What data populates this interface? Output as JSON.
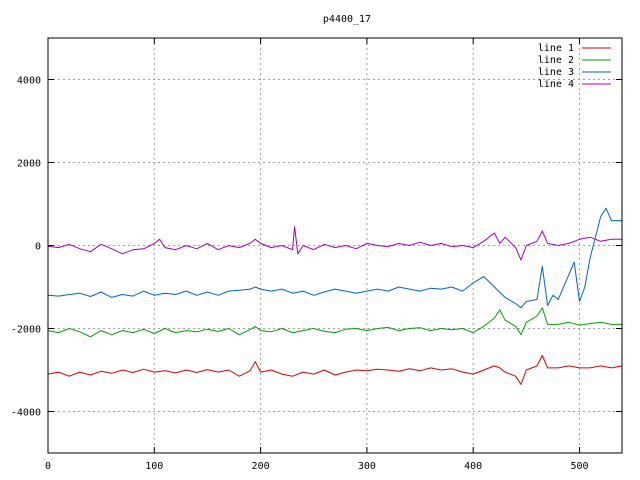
{
  "chart_data": {
    "type": "line",
    "title": "p4400_17",
    "xlabel": "",
    "ylabel": "",
    "xlim": [
      0,
      540
    ],
    "ylim": [
      -5000,
      5000
    ],
    "x_ticks": [
      0,
      100,
      200,
      300,
      400,
      500
    ],
    "y_ticks": [
      -4000,
      -2000,
      0,
      2000,
      4000
    ],
    "grid": true,
    "legend_position": "top-right",
    "series": [
      {
        "name": "line 1",
        "color": "#e00000",
        "x": [
          0,
          10,
          20,
          30,
          40,
          50,
          60,
          70,
          80,
          90,
          100,
          110,
          120,
          130,
          140,
          150,
          160,
          170,
          180,
          190,
          195,
          200,
          210,
          220,
          230,
          240,
          250,
          260,
          270,
          280,
          290,
          300,
          310,
          320,
          330,
          340,
          350,
          360,
          370,
          380,
          390,
          400,
          410,
          420,
          425,
          430,
          440,
          445,
          450,
          460,
          465,
          470,
          480,
          490,
          500,
          510,
          520,
          530,
          540
        ],
        "values": [
          -3100,
          -3050,
          -3150,
          -3050,
          -3120,
          -3030,
          -3080,
          -3000,
          -3060,
          -2980,
          -3050,
          -3020,
          -3070,
          -3000,
          -3060,
          -2990,
          -3050,
          -3000,
          -3150,
          -3020,
          -2800,
          -3050,
          -3000,
          -3100,
          -3150,
          -3050,
          -3100,
          -3000,
          -3120,
          -3050,
          -3000,
          -3020,
          -2980,
          -3000,
          -3030,
          -2970,
          -3020,
          -2950,
          -3000,
          -2970,
          -3050,
          -3100,
          -3000,
          -2900,
          -2950,
          -3050,
          -3150,
          -3350,
          -3000,
          -2900,
          -2650,
          -2950,
          -2950,
          -2900,
          -2950,
          -2950,
          -2900,
          -2950,
          -2900
        ]
      },
      {
        "name": "line 2",
        "color": "#00a000",
        "x": [
          0,
          10,
          20,
          30,
          40,
          50,
          60,
          70,
          80,
          90,
          100,
          110,
          120,
          130,
          140,
          150,
          160,
          170,
          180,
          190,
          195,
          200,
          210,
          220,
          230,
          240,
          250,
          260,
          270,
          280,
          290,
          300,
          310,
          320,
          330,
          340,
          350,
          360,
          370,
          380,
          390,
          400,
          410,
          420,
          425,
          430,
          440,
          445,
          450,
          460,
          465,
          470,
          480,
          490,
          500,
          510,
          520,
          530,
          540
        ],
        "values": [
          -2050,
          -2100,
          -2000,
          -2080,
          -2200,
          -2050,
          -2150,
          -2050,
          -2100,
          -2020,
          -2120,
          -2000,
          -2100,
          -2050,
          -2080,
          -2020,
          -2070,
          -2000,
          -2150,
          -2030,
          -1950,
          -2050,
          -2080,
          -2000,
          -2100,
          -2050,
          -2000,
          -2070,
          -2100,
          -2020,
          -2000,
          -2050,
          -2000,
          -1970,
          -2050,
          -2000,
          -1980,
          -2050,
          -2000,
          -2030,
          -2000,
          -2100,
          -1950,
          -1750,
          -1550,
          -1800,
          -1950,
          -2150,
          -1850,
          -1700,
          -1500,
          -1900,
          -1900,
          -1850,
          -1920,
          -1880,
          -1850,
          -1900,
          -1900
        ]
      },
      {
        "name": "line 3",
        "color": "#0060e0",
        "x": [
          0,
          10,
          20,
          30,
          40,
          50,
          60,
          70,
          80,
          90,
          100,
          110,
          120,
          130,
          140,
          150,
          160,
          170,
          180,
          190,
          195,
          200,
          210,
          220,
          230,
          240,
          250,
          260,
          270,
          280,
          290,
          300,
          310,
          320,
          330,
          340,
          350,
          360,
          370,
          380,
          390,
          400,
          410,
          420,
          430,
          440,
          445,
          450,
          460,
          465,
          470,
          475,
          480,
          490,
          495,
          500,
          505,
          510,
          520,
          525,
          530,
          540
        ],
        "values": [
          -1200,
          -1220,
          -1180,
          -1150,
          -1230,
          -1120,
          -1250,
          -1180,
          -1220,
          -1100,
          -1200,
          -1150,
          -1180,
          -1100,
          -1200,
          -1120,
          -1200,
          -1100,
          -1080,
          -1050,
          -1000,
          -1050,
          -1100,
          -1050,
          -1150,
          -1100,
          -1200,
          -1120,
          -1050,
          -1100,
          -1150,
          -1100,
          -1050,
          -1100,
          -1000,
          -1050,
          -1100,
          -1030,
          -1050,
          -1000,
          -1100,
          -900,
          -750,
          -1000,
          -1250,
          -1400,
          -1500,
          -1350,
          -1300,
          -500,
          -1450,
          -1200,
          -1300,
          -700,
          -400,
          -1350,
          -1000,
          -300,
          700,
          900,
          600,
          600
        ]
      },
      {
        "name": "line 4",
        "color": "#a000c0",
        "x": [
          0,
          10,
          20,
          30,
          40,
          50,
          60,
          70,
          80,
          90,
          100,
          105,
          110,
          120,
          130,
          140,
          150,
          160,
          170,
          180,
          190,
          195,
          200,
          210,
          220,
          230,
          232,
          235,
          240,
          250,
          260,
          270,
          280,
          290,
          300,
          310,
          320,
          330,
          340,
          350,
          360,
          370,
          380,
          390,
          400,
          410,
          420,
          425,
          430,
          440,
          445,
          450,
          460,
          465,
          470,
          480,
          490,
          500,
          510,
          520,
          530,
          540
        ],
        "values": [
          -20,
          -50,
          30,
          -80,
          -150,
          30,
          -80,
          -200,
          -100,
          -80,
          50,
          150,
          -50,
          -100,
          0,
          -80,
          50,
          -100,
          0,
          -50,
          50,
          150,
          50,
          -50,
          0,
          -100,
          450,
          -200,
          0,
          -100,
          30,
          -50,
          0,
          -80,
          50,
          0,
          -30,
          50,
          0,
          80,
          0,
          50,
          -30,
          0,
          -50,
          100,
          300,
          50,
          200,
          -50,
          -350,
          0,
          100,
          350,
          50,
          0,
          50,
          150,
          200,
          100,
          150,
          150
        ]
      }
    ]
  }
}
